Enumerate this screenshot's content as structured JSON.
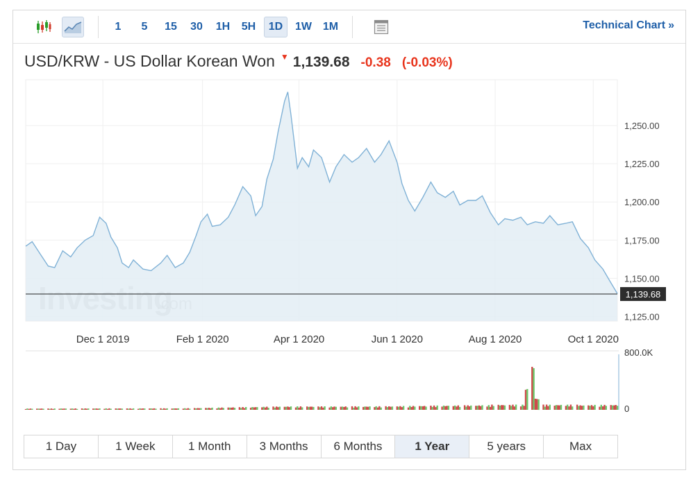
{
  "toolbar": {
    "chart_type_icons": [
      {
        "name": "candlestick-icon",
        "active": false
      },
      {
        "name": "area-chart-icon",
        "active": true
      }
    ],
    "periods": [
      "1",
      "5",
      "15",
      "30",
      "1H",
      "5H",
      "1D",
      "1W",
      "1M"
    ],
    "active_period": "1D",
    "settings_icon": "panel-icon",
    "technical_chart_label": "Technical Chart",
    "technical_chart_arrows": "»"
  },
  "header": {
    "title": "USD/KRW - US Dollar Korean Won",
    "direction_icon": "down-arrow-icon",
    "last_price": "1,139.68",
    "change": "-0.38",
    "change_percent": "(-0.03%)"
  },
  "colors": {
    "line": "#7fb1d6",
    "area_fill": "#e3edf5",
    "down": "#e8341c",
    "vol_up": "#6bc76b",
    "vol_down": "#cf4b4b",
    "link": "#1f5fa8"
  },
  "watermark": {
    "main": "Investing",
    "suffix": ".com"
  },
  "chart_data": [
    {
      "type": "area",
      "title": "USD/KRW - US Dollar Korean Won",
      "x_tick_labels": [
        "Dec 1 2019",
        "Feb 1 2020",
        "Apr 1 2020",
        "Jun 1 2020",
        "Aug 1 2020",
        "Oct 1 2020"
      ],
      "y_tick_labels": [
        "1,250.00",
        "1,225.00",
        "1,200.00",
        "1,175.00",
        "1,150.00",
        "1,125.00"
      ],
      "ylim": [
        1122,
        1280
      ],
      "last_value": 1139.68,
      "last_value_label": "1,139.68",
      "grid": true,
      "series": [
        {
          "x": [
            "2019-10-14",
            "2019-10-18",
            "2019-10-23",
            "2019-10-28",
            "2019-11-01",
            "2019-11-06",
            "2019-11-11",
            "2019-11-15",
            "2019-11-20",
            "2019-11-25",
            "2019-11-29",
            "2019-12-03",
            "2019-12-06",
            "2019-12-10",
            "2019-12-13",
            "2019-12-17",
            "2019-12-20",
            "2019-12-26",
            "2019-12-31",
            "2020-01-06",
            "2020-01-10",
            "2020-01-15",
            "2020-01-20",
            "2020-01-24",
            "2020-01-28",
            "2020-01-31",
            "2020-02-04",
            "2020-02-07",
            "2020-02-12",
            "2020-02-17",
            "2020-02-21",
            "2020-02-26",
            "2020-03-02",
            "2020-03-05",
            "2020-03-09",
            "2020-03-12",
            "2020-03-16",
            "2020-03-19",
            "2020-03-23",
            "2020-03-25",
            "2020-03-27",
            "2020-03-31",
            "2020-04-03",
            "2020-04-07",
            "2020-04-10",
            "2020-04-15",
            "2020-04-20",
            "2020-04-24",
            "2020-04-29",
            "2020-05-04",
            "2020-05-08",
            "2020-05-13",
            "2020-05-18",
            "2020-05-22",
            "2020-05-27",
            "2020-06-01",
            "2020-06-04",
            "2020-06-08",
            "2020-06-12",
            "2020-06-17",
            "2020-06-22",
            "2020-06-26",
            "2020-07-01",
            "2020-07-06",
            "2020-07-10",
            "2020-07-15",
            "2020-07-20",
            "2020-07-24",
            "2020-07-29",
            "2020-08-03",
            "2020-08-07",
            "2020-08-12",
            "2020-08-17",
            "2020-08-21",
            "2020-08-26",
            "2020-08-31",
            "2020-09-04",
            "2020-09-09",
            "2020-09-14",
            "2020-09-18",
            "2020-09-23",
            "2020-09-28",
            "2020-10-02",
            "2020-10-07",
            "2020-10-12",
            "2020-10-16"
          ],
          "values": [
            1171,
            1174,
            1166,
            1158,
            1157,
            1168,
            1164,
            1170,
            1175,
            1178,
            1190,
            1186,
            1177,
            1170,
            1160,
            1157,
            1162,
            1156,
            1155,
            1160,
            1165,
            1157,
            1160,
            1167,
            1178,
            1187,
            1192,
            1184,
            1185,
            1190,
            1198,
            1210,
            1204,
            1191,
            1197,
            1215,
            1228,
            1246,
            1266,
            1272,
            1257,
            1222,
            1229,
            1223,
            1234,
            1229,
            1213,
            1223,
            1231,
            1226,
            1229,
            1235,
            1226,
            1231,
            1240,
            1226,
            1212,
            1201,
            1194,
            1203,
            1213,
            1206,
            1203,
            1207,
            1198,
            1201,
            1201,
            1204,
            1193,
            1185,
            1189,
            1188,
            1190,
            1185,
            1187,
            1186,
            1191,
            1185,
            1186,
            1187,
            1176,
            1170,
            1162,
            1156,
            1147,
            1140
          ]
        }
      ]
    },
    {
      "type": "bar",
      "title": "",
      "y_tick_labels": [
        "800.0K",
        "0"
      ],
      "ylim": [
        0,
        800000
      ],
      "note": "daily volume; mostly near zero with a spike in late August 2020",
      "series": [
        {
          "x": [
            "2019-10-14",
            "2019-11-15",
            "2019-12-17",
            "2020-01-20",
            "2020-02-21",
            "2020-03-23",
            "2020-04-24",
            "2020-05-27",
            "2020-06-26",
            "2020-07-29",
            "2020-08-21",
            "2020-08-24",
            "2020-08-25",
            "2020-08-26",
            "2020-09-23",
            "2020-10-16"
          ],
          "values": [
            15000,
            16000,
            17000,
            18000,
            30000,
            40000,
            40000,
            42000,
            50000,
            55000,
            300000,
            620000,
            600000,
            160000,
            55000,
            60000
          ]
        }
      ]
    }
  ],
  "ranges": [
    "1 Day",
    "1 Week",
    "1 Month",
    "3 Months",
    "6 Months",
    "1 Year",
    "5 years",
    "Max"
  ],
  "active_range": "1 Year"
}
